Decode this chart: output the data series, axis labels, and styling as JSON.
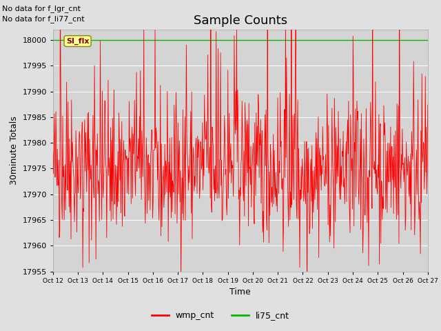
{
  "title": "Sample Counts",
  "xlabel": "Time",
  "ylabel": "30minute Totals",
  "ylim": [
    17955,
    18002
  ],
  "yticks": [
    17955,
    17960,
    17965,
    17970,
    17975,
    17980,
    17985,
    17990,
    17995,
    18000
  ],
  "xtick_labels": [
    "Oct 12",
    "Oct 13",
    "Oct 14",
    "Oct 15",
    "Oct 16",
    "Oct 17",
    "Oct 18",
    "Oct 19",
    "Oct 20",
    "Oct 21",
    "Oct 22",
    "Oct 23",
    "Oct 24",
    "Oct 25",
    "Oct 26",
    "Oct 27"
  ],
  "annotation_line1": "No data for f_lgr_cnt",
  "annotation_line2": "No data for f_li77_cnt",
  "si_flx_label": "SI_flx",
  "si_flx_color": "#99cc00",
  "wmp_cnt_color": "#ff0000",
  "li75_cnt_color": "#00bb00",
  "fig_bg_color": "#e0e0e0",
  "plot_bg_color": "#d4d4d4",
  "grid_color": "#ffffff",
  "title_fontsize": 13,
  "label_fontsize": 9,
  "tick_fontsize": 8,
  "annot_fontsize": 8,
  "seed": 42,
  "n_points": 768,
  "wmp_base": 17975,
  "wmp_noise": 7
}
